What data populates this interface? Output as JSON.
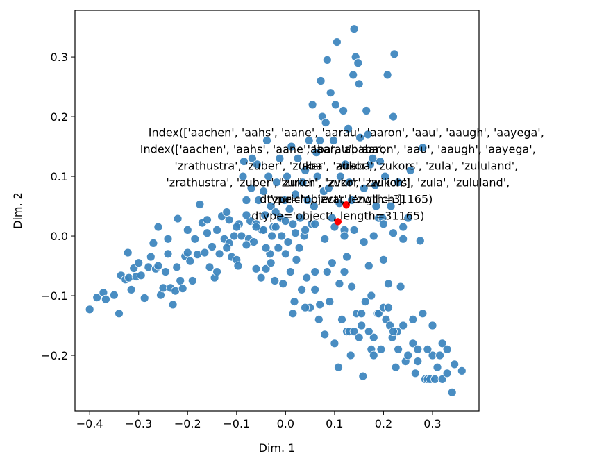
{
  "chart_data": {
    "type": "scatter",
    "xlabel": "Dim. 1",
    "ylabel": "Dim. 2",
    "xlim": [
      -0.43,
      0.395
    ],
    "ylim": [
      -0.293,
      0.378
    ],
    "xticks": [
      -0.4,
      -0.3,
      -0.2,
      -0.1,
      0.0,
      0.1,
      0.2,
      0.3
    ],
    "xtick_labels": [
      "−0.4",
      "−0.3",
      "−0.2",
      "−0.1",
      "0.0",
      "0.1",
      "0.2",
      "0.3"
    ],
    "yticks": [
      -0.2,
      -0.1,
      0.0,
      0.1,
      0.2,
      0.3
    ],
    "ytick_labels": [
      "−0.2",
      "−0.1",
      "0.0",
      "0.1",
      "0.2",
      "0.3"
    ],
    "grid": false,
    "legend": "none",
    "colors": {
      "points": "#3b84bd",
      "highlight": "#ff0000",
      "edge": "#ffffff"
    },
    "series": [
      {
        "points": [
          [
            -0.4,
            -0.123
          ],
          [
            -0.385,
            -0.103
          ],
          [
            -0.372,
            -0.095
          ],
          [
            -0.367,
            -0.106
          ],
          [
            -0.35,
            -0.099
          ],
          [
            -0.34,
            -0.13
          ],
          [
            -0.336,
            -0.066
          ],
          [
            -0.327,
            -0.073
          ],
          [
            -0.322,
            -0.028
          ],
          [
            -0.32,
            -0.07
          ],
          [
            -0.315,
            -0.09
          ],
          [
            -0.31,
            -0.054
          ],
          [
            -0.305,
            -0.068
          ],
          [
            -0.3,
            -0.045
          ],
          [
            -0.295,
            -0.066
          ],
          [
            -0.288,
            -0.104
          ],
          [
            -0.28,
            -0.052
          ],
          [
            -0.275,
            -0.035
          ],
          [
            -0.27,
            -0.012
          ],
          [
            -0.265,
            -0.055
          ],
          [
            -0.26,
            -0.05
          ],
          [
            -0.255,
            -0.099
          ],
          [
            -0.25,
            -0.087
          ],
          [
            -0.245,
            -0.06
          ],
          [
            -0.24,
            -0.03
          ],
          [
            -0.235,
            -0.087
          ],
          [
            -0.23,
            -0.115
          ],
          [
            -0.225,
            -0.092
          ],
          [
            -0.222,
            -0.052
          ],
          [
            -0.22,
            0.029
          ],
          [
            -0.215,
            -0.075
          ],
          [
            -0.21,
            -0.088
          ],
          [
            -0.205,
            -0.034
          ],
          [
            -0.2,
            -0.028
          ],
          [
            -0.195,
            -0.042
          ],
          [
            -0.19,
            -0.075
          ],
          [
            -0.185,
            -0.005
          ],
          [
            -0.18,
            -0.031
          ],
          [
            -0.175,
            0.053
          ],
          [
            -0.17,
            0.022
          ],
          [
            -0.165,
            -0.028
          ],
          [
            -0.16,
            0.027
          ],
          [
            -0.155,
            -0.052
          ],
          [
            -0.15,
            -0.018
          ],
          [
            -0.145,
            -0.07
          ],
          [
            -0.14,
            -0.06
          ],
          [
            -0.135,
            -0.03
          ],
          [
            -0.13,
            0.033
          ],
          [
            -0.125,
            -0.005
          ],
          [
            -0.12,
            0.04
          ],
          [
            -0.115,
            0.027
          ],
          [
            -0.11,
            -0.035
          ],
          [
            -0.105,
            0.0
          ],
          [
            -0.1,
            -0.04
          ],
          [
            -0.097,
            -0.05
          ],
          [
            -0.095,
            0.02
          ],
          [
            -0.09,
            0.0
          ],
          [
            -0.087,
            0.1
          ],
          [
            -0.085,
            0.125
          ],
          [
            -0.08,
            0.06
          ],
          [
            -0.075,
            -0.005
          ],
          [
            -0.072,
            0.025
          ],
          [
            -0.07,
            0.08
          ],
          [
            -0.068,
            0.13
          ],
          [
            -0.065,
            -0.01
          ],
          [
            -0.06,
            0.02
          ],
          [
            -0.058,
            0.12
          ],
          [
            -0.055,
            0.06
          ],
          [
            -0.05,
            -0.07
          ],
          [
            -0.048,
            0.01
          ],
          [
            -0.045,
            0.075
          ],
          [
            -0.042,
            0.035
          ],
          [
            -0.04,
            -0.055
          ],
          [
            -0.038,
            0.16
          ],
          [
            -0.035,
            0.1
          ],
          [
            -0.032,
            -0.03
          ],
          [
            -0.03,
            0.05
          ],
          [
            -0.028,
            0.0
          ],
          [
            -0.025,
            0.015
          ],
          [
            -0.022,
            -0.075
          ],
          [
            -0.02,
            0.04
          ],
          [
            -0.018,
            0.09
          ],
          [
            -0.015,
            -0.02
          ],
          [
            -0.012,
            0.13
          ],
          [
            -0.01,
            0.03
          ],
          [
            -0.008,
            0.0
          ],
          [
            -0.005,
            -0.08
          ],
          [
            -0.002,
            0.06
          ],
          [
            0.0,
            -0.03
          ],
          [
            0.003,
            0.1
          ],
          [
            0.005,
            -0.01
          ],
          [
            0.008,
            0.045
          ],
          [
            0.01,
            -0.06
          ],
          [
            0.012,
            0.15
          ],
          [
            0.015,
            0.02
          ],
          [
            0.018,
            -0.11
          ],
          [
            0.02,
            0.07
          ],
          [
            0.022,
            -0.04
          ],
          [
            0.025,
            0.13
          ],
          [
            0.028,
            -0.02
          ],
          [
            0.03,
            0.03
          ],
          [
            0.033,
            -0.09
          ],
          [
            0.035,
            0.09
          ],
          [
            0.038,
            0.0
          ],
          [
            0.04,
            0.11
          ],
          [
            0.043,
            -0.07
          ],
          [
            0.045,
            0.06
          ],
          [
            0.048,
            0.16
          ],
          [
            0.05,
            -0.12
          ],
          [
            0.053,
            0.02
          ],
          [
            0.055,
            0.22
          ],
          [
            0.058,
            0.05
          ],
          [
            0.06,
            -0.06
          ],
          [
            0.063,
            0.14
          ],
          [
            0.065,
            0.1
          ],
          [
            0.068,
            -0.14
          ],
          [
            0.07,
            0.16
          ],
          [
            0.072,
            0.26
          ],
          [
            0.075,
            0.2
          ],
          [
            0.078,
            0.075
          ],
          [
            0.08,
            -0.165
          ],
          [
            0.082,
            0.19
          ],
          [
            0.085,
            0.295
          ],
          [
            0.088,
            0.08
          ],
          [
            0.09,
            -0.11
          ],
          [
            0.092,
            0.24
          ],
          [
            0.095,
            0.03
          ],
          [
            0.098,
            0.16
          ],
          [
            0.1,
            -0.18
          ],
          [
            0.102,
            0.22
          ],
          [
            0.105,
            0.325
          ],
          [
            0.108,
            -0.22
          ],
          [
            0.11,
            0.055
          ],
          [
            0.112,
            0.1
          ],
          [
            0.115,
            -0.14
          ],
          [
            0.118,
            0.21
          ],
          [
            0.12,
            0.01
          ],
          [
            0.122,
            0.12
          ],
          [
            0.125,
            -0.16
          ],
          [
            0.128,
            0.18
          ],
          [
            0.13,
            0.09
          ],
          [
            0.133,
            -0.2
          ],
          [
            0.135,
            0.06
          ],
          [
            0.138,
            0.27
          ],
          [
            0.14,
            0.347
          ],
          [
            0.143,
            0.3
          ],
          [
            0.145,
            -0.13
          ],
          [
            0.148,
            0.29
          ],
          [
            0.15,
            0.255
          ],
          [
            0.152,
            0.165
          ],
          [
            0.155,
            -0.15
          ],
          [
            0.158,
            -0.235
          ],
          [
            0.16,
            0.08
          ],
          [
            0.163,
            -0.11
          ],
          [
            0.165,
            0.21
          ],
          [
            0.168,
            0.17
          ],
          [
            0.17,
            -0.05
          ],
          [
            0.173,
            0.12
          ],
          [
            0.175,
            -0.1
          ],
          [
            0.178,
            0.13
          ],
          [
            0.18,
            -0.17
          ],
          [
            0.183,
            0.085
          ],
          [
            0.185,
            0.05
          ],
          [
            0.188,
            -0.13
          ],
          [
            0.19,
            0.03
          ],
          [
            0.193,
            0.125
          ],
          [
            0.195,
            -0.19
          ],
          [
            0.198,
            0.03
          ],
          [
            0.2,
            -0.04
          ],
          [
            0.203,
            0.1
          ],
          [
            0.205,
            -0.14
          ],
          [
            0.208,
            0.27
          ],
          [
            0.21,
            -0.08
          ],
          [
            0.213,
            -0.15
          ],
          [
            0.215,
            0.05
          ],
          [
            0.218,
            -0.17
          ],
          [
            0.22,
            0.2
          ],
          [
            0.222,
            0.305
          ],
          [
            0.225,
            -0.22
          ],
          [
            0.228,
            -0.16
          ],
          [
            0.23,
            0.09
          ],
          [
            0.235,
            -0.085
          ],
          [
            0.24,
            -0.005
          ],
          [
            0.245,
            -0.21
          ],
          [
            0.25,
            0.03
          ],
          [
            0.255,
            0.11
          ],
          [
            0.26,
            -0.18
          ],
          [
            0.265,
            -0.23
          ],
          [
            0.27,
            -0.19
          ],
          [
            0.275,
            -0.008
          ],
          [
            0.28,
            0.148
          ],
          [
            0.285,
            -0.24
          ],
          [
            0.29,
            -0.24
          ],
          [
            0.295,
            -0.24
          ],
          [
            0.3,
            -0.2
          ],
          [
            0.305,
            -0.24
          ],
          [
            0.31,
            -0.22
          ],
          [
            0.315,
            -0.2
          ],
          [
            0.32,
            -0.24
          ],
          [
            0.33,
            -0.23
          ],
          [
            0.34,
            -0.262
          ],
          [
            0.345,
            -0.215
          ],
          [
            0.36,
            -0.226
          ],
          [
            -0.115,
            -0.012
          ],
          [
            -0.08,
            0.035
          ],
          [
            -0.06,
            -0.055
          ],
          [
            -0.045,
            0.01
          ],
          [
            -0.03,
            -0.045
          ],
          [
            0.015,
            -0.13
          ],
          [
            0.04,
            -0.12
          ],
          [
            0.06,
            -0.09
          ],
          [
            0.07,
            -0.115
          ],
          [
            0.085,
            -0.06
          ],
          [
            0.095,
            -0.045
          ],
          [
            0.11,
            -0.08
          ],
          [
            0.12,
            -0.06
          ],
          [
            0.125,
            -0.035
          ],
          [
            0.13,
            -0.16
          ],
          [
            0.135,
            -0.085
          ],
          [
            0.14,
            -0.16
          ],
          [
            0.15,
            -0.17
          ],
          [
            0.155,
            -0.13
          ],
          [
            0.17,
            -0.16
          ],
          [
            0.175,
            -0.19
          ],
          [
            0.18,
            -0.2
          ],
          [
            0.19,
            -0.13
          ],
          [
            0.2,
            -0.12
          ],
          [
            0.21,
            -0.12
          ],
          [
            0.22,
            -0.16
          ],
          [
            0.23,
            -0.19
          ],
          [
            0.24,
            -0.15
          ],
          [
            0.25,
            -0.2
          ],
          [
            0.26,
            -0.14
          ],
          [
            0.27,
            -0.21
          ],
          [
            0.28,
            -0.13
          ],
          [
            0.29,
            -0.19
          ],
          [
            0.3,
            -0.15
          ],
          [
            0.32,
            -0.18
          ],
          [
            0.33,
            -0.19
          ],
          [
            -0.26,
            0.015
          ],
          [
            -0.24,
            -0.005
          ],
          [
            -0.2,
            0.01
          ],
          [
            -0.16,
            0.005
          ],
          [
            -0.14,
            0.01
          ],
          [
            -0.12,
            -0.02
          ],
          [
            -0.1,
            0.015
          ],
          [
            -0.08,
            -0.015
          ],
          [
            -0.06,
            0.015
          ],
          [
            -0.04,
            -0.02
          ],
          [
            -0.02,
            0.015
          ],
          [
            0.0,
            0.025
          ],
          [
            0.02,
            0.005
          ],
          [
            0.04,
            0.01
          ],
          [
            0.06,
            0.02
          ],
          [
            0.08,
            -0.005
          ],
          [
            0.1,
            0.015
          ],
          [
            0.12,
            0.0
          ],
          [
            0.14,
            0.01
          ],
          [
            0.16,
            -0.01
          ],
          [
            0.18,
            0.0
          ],
          [
            0.2,
            0.02
          ],
          [
            0.22,
            0.005
          ],
          [
            0.24,
            0.015
          ]
        ]
      },
      {
        "points": [
          [
            0.107,
            0.024
          ],
          [
            0.124,
            0.052
          ]
        ]
      }
    ],
    "annotations": [
      {
        "lines": [
          "Index(['aachen', 'aahs', 'aane', 'aarau', 'aaron', 'aau', 'aaugh', 'aayega',",
          "'aba', 'ababa',",
          "'zrathustra', 'zuber', 'zuker', 'zukor', 'zukors', 'zula', 'zululand',",
          "'zurich', 'zvar', 'zwilich'],",
          "dtype='object', length=31165)"
        ],
        "x": 0.124,
        "y": 0.052
      },
      {
        "lines": [
          "Index(['aachen', 'aahs', 'aane', 'aarau', 'aaron', 'aau', 'aaugh', 'aayega',",
          "'aba', 'ababa',",
          "'zrathustra', 'zuber', 'zuker', 'zukor', 'zukors', 'zula', 'zululand',",
          "'zurich', 'zvar', 'zwilich'],",
          "dtype='object', length=31165)"
        ],
        "x": 0.107,
        "y": 0.024
      }
    ]
  }
}
